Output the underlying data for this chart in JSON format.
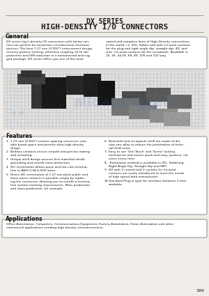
{
  "bg_color": "#f0ede8",
  "title_line1": "DX SERIES",
  "title_line2": "HIGH-DENSITY I/O CONNECTORS",
  "title_color": "#1a1a1a",
  "separator_color": "#777777",
  "section_title_color": "#111111",
  "body_text_color": "#1a1a1a",
  "box_edge_color": "#777777",
  "page_num": "189",
  "general_title": "General",
  "general_body1": "DX series hig h-density I/O connectors with below con-\nnect are perfect for tomorrow's miniaturized electronic\ndevices. The best 1.27 mm (0.050\") interconnect design\nensures positive locking, effortless coupling, Hi-Hi tail\nprotection and EMI reduction in a miniaturized and rug-\nged package. DX series offers you one of the most",
  "general_body2": "varied and complete lines of High-Density connections\nin the world, i.e. IDO, Solder and with Co-axial contacts\nfor the plug and right angle dip, straight dip, IDC and\nwire. Co-axial contacts for the receptacle. Available in\n20, 26, 34,50, 68, 80, 100 and 152 way.",
  "features_title": "Features",
  "features_items_left": [
    "1.27 mm (0.050\") contact spacing conserves valu-\nable board space and permits ultra-high density\ndesign.",
    "Bellows contacts ensure smooth and precise mating\nand unmating.",
    "Unique shell design assures first mate/last break\ngrounding and overall noise protection.",
    "IDC termination allows quick and low cost termina-\ntion to AWG 0.08 & B30 wires.",
    "Direct IDC termination of 1.27 mm pitch public and\nloose piece contacts is possible simply by replac-\ning the connector, allowing you to retrofit a termina-\ntion system meeting requirements. Mass production\nand mass production, for example."
  ],
  "features_items_right": [
    "Backshell and receptacle shell are made of die-\ncast zinc alloy to reduce the penetration of exter-\nnal field noise.",
    "Easy to use 'One-Touch' and 'Screw' locking\nmechanism and assure quick and easy 'positive' clo-\nsures every time.",
    "Termination method is available in IDC, Soldering,\nRight Angle Dip, Straight Dip and SMT.",
    "DX with 3 coaxial and 3 cavities for Co-axial\ncontacts are newly introduced to meet the needs\nof high speed data transmission.",
    "Standard Plug-in type for interface between 2 bins\navailable."
  ],
  "features_nums_right": [
    "6.",
    "7.",
    "8.",
    "9.",
    "10."
  ],
  "applications_title": "Applications",
  "applications_body": "Office Automation, Computers, Communications Equipment, Factory Automation, Home Automation and other\ncommercial applications needing high density interconnections."
}
